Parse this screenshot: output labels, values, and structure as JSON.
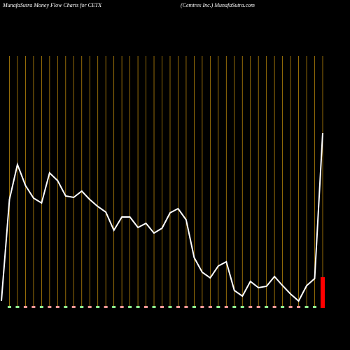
{
  "chart_data": {
    "type": "line",
    "title": "MunafaSutra  Money Flow  Charts for CETX",
    "subtitle": "(Cemtrex Inc.) MunafaSutra.com",
    "ylim": [
      0,
      360
    ],
    "line_color": "#ffffff",
    "grid_color": "#b8860b",
    "values": [
      10,
      155,
      205,
      175,
      157,
      150,
      193,
      182,
      160,
      158,
      167,
      155,
      145,
      137,
      111,
      130,
      130,
      115,
      121,
      107,
      114,
      136,
      142,
      126,
      72,
      51,
      43,
      60,
      66,
      25,
      17,
      38,
      29,
      31,
      45,
      32,
      20,
      10,
      32,
      42,
      250
    ],
    "bar_values": [
      3,
      3,
      3,
      3,
      3,
      3,
      3,
      3,
      3,
      3,
      3,
      3,
      3,
      3,
      3,
      3,
      3,
      3,
      3,
      3,
      3,
      3,
      3,
      3,
      3,
      3,
      3,
      3,
      3,
      3,
      3,
      3,
      3,
      3,
      3,
      3,
      3,
      3,
      3,
      44
    ],
    "bar_colors": [
      "#90ee90",
      "#90ee90",
      "#ff9999",
      "#ff9999",
      "#90ee90",
      "#ff9999",
      "#ff9999",
      "#90ee90",
      "#ff9999",
      "#90ee90",
      "#ff9999",
      "#90ee90",
      "#ff9999",
      "#90ee90",
      "#ff9999",
      "#90ee90",
      "#90ee90",
      "#ff9999",
      "#90ee90",
      "#ff9999",
      "#90ee90",
      "#ff9999",
      "#ff9999",
      "#90ee90",
      "#ff9999",
      "#ff9999",
      "#90ee90",
      "#ff9999",
      "#90ee90",
      "#90ee90",
      "#ff9999",
      "#ff9999",
      "#90ee90",
      "#ff9999",
      "#90ee90",
      "#ff9999",
      "#ff9999",
      "#90ee90",
      "#90ee90",
      "#ff0000"
    ]
  }
}
